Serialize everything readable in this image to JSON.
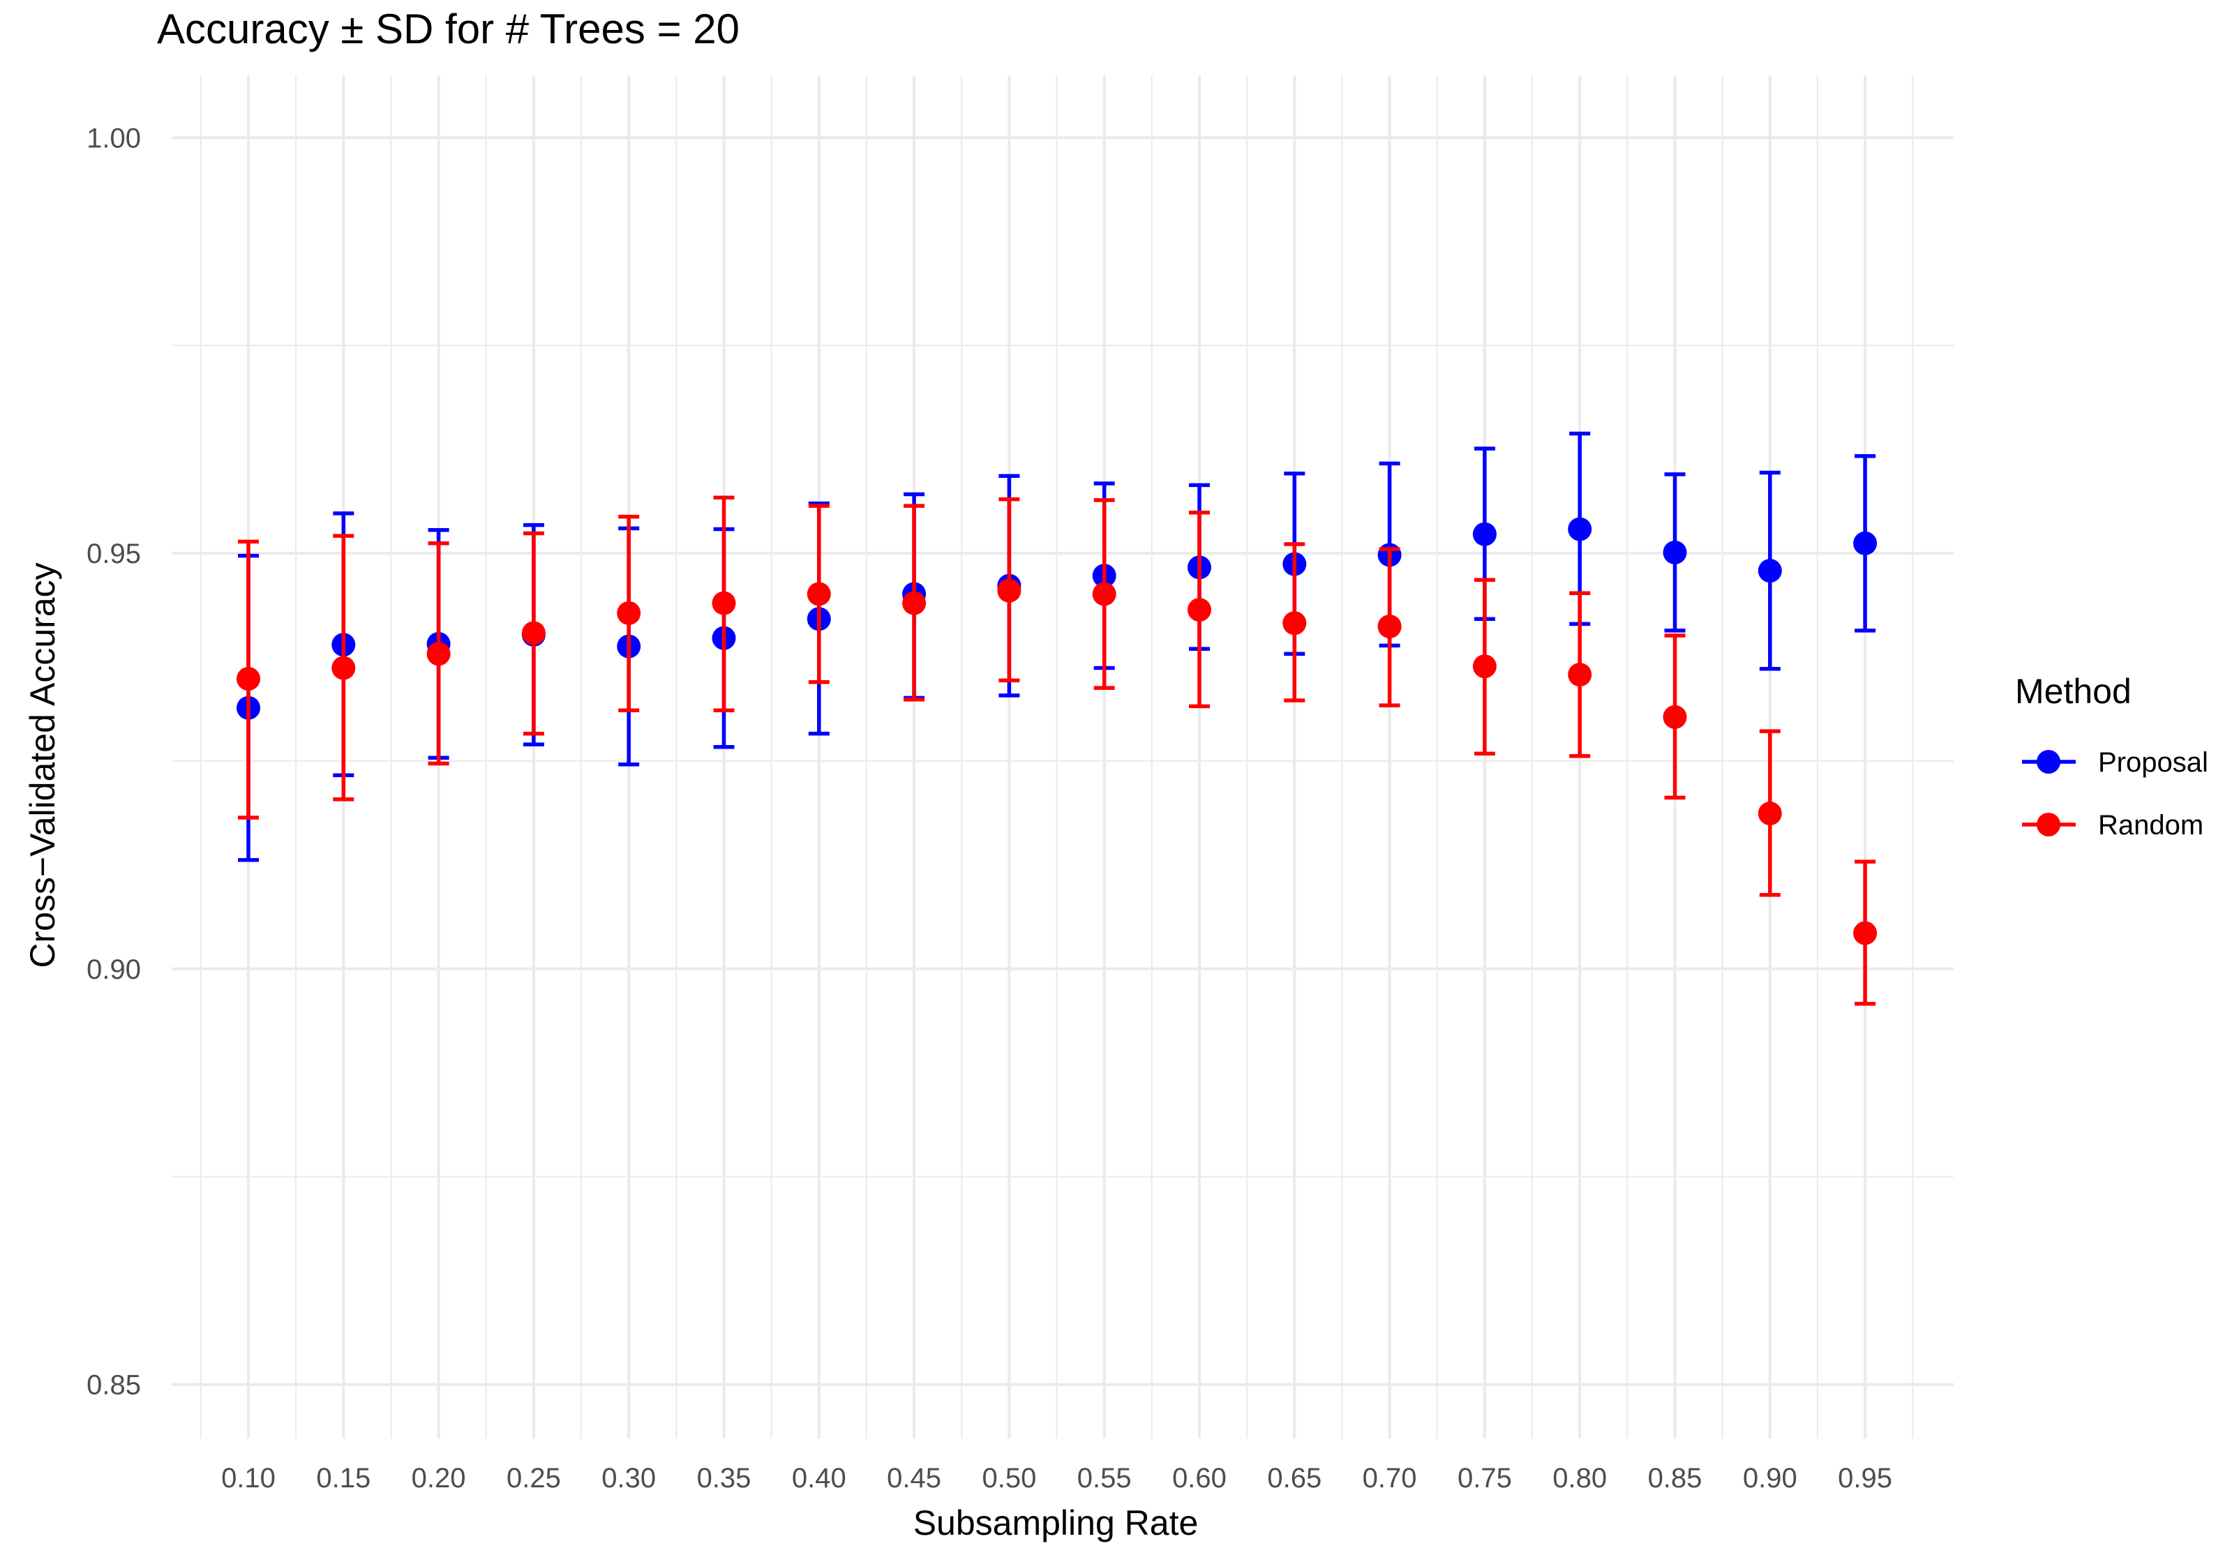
{
  "chart_data": {
    "type": "scatter",
    "title": "Accuracy ± SD for # Trees = 20",
    "xlabel": "Subsampling Rate",
    "ylabel": "Cross−Validated Accuracy",
    "categories": [
      "0.10",
      "0.15",
      "0.20",
      "0.25",
      "0.30",
      "0.35",
      "0.40",
      "0.45",
      "0.50",
      "0.55",
      "0.60",
      "0.65",
      "0.70",
      "0.75",
      "0.80",
      "0.85",
      "0.90",
      "0.95"
    ],
    "y_ticks": [
      "0.85",
      "0.90",
      "0.95",
      "1.00"
    ],
    "ylim": [
      0.8435,
      1.0075
    ],
    "grid": true,
    "legend": {
      "title": "Method",
      "position": "right"
    },
    "series": [
      {
        "name": "Proposal",
        "color": "#0000ff",
        "values": [
          0.9314,
          0.939,
          0.9391,
          0.9402,
          0.9388,
          0.9398,
          0.9421,
          0.9451,
          0.9461,
          0.9473,
          0.9483,
          0.9487,
          0.9498,
          0.9523,
          0.9529,
          0.9501,
          0.9479,
          0.9512
        ],
        "lower": [
          0.9131,
          0.9233,
          0.9254,
          0.927,
          0.9246,
          0.9267,
          0.9283,
          0.9326,
          0.9329,
          0.9362,
          0.9385,
          0.9379,
          0.9389,
          0.9421,
          0.9415,
          0.9407,
          0.9361,
          0.9407
        ],
        "upper": [
          0.9497,
          0.9548,
          0.9528,
          0.9534,
          0.953,
          0.9529,
          0.956,
          0.9571,
          0.9593,
          0.9584,
          0.9582,
          0.9596,
          0.9608,
          0.9626,
          0.9644,
          0.9595,
          0.9597,
          0.9617
        ]
      },
      {
        "name": "Random",
        "color": "#ff0000",
        "values": [
          0.9349,
          0.9362,
          0.9379,
          0.9404,
          0.9428,
          0.944,
          0.9451,
          0.944,
          0.9455,
          0.9451,
          0.9432,
          0.9416,
          0.9412,
          0.9364,
          0.9354,
          0.9303,
          0.9187,
          0.9043
        ],
        "lower": [
          0.9182,
          0.9204,
          0.9247,
          0.9283,
          0.9311,
          0.9311,
          0.9345,
          0.9324,
          0.9347,
          0.9338,
          0.9316,
          0.9323,
          0.9317,
          0.9259,
          0.9256,
          0.9206,
          0.9089,
          0.8958
        ],
        "upper": [
          0.9514,
          0.9521,
          0.9512,
          0.9524,
          0.9544,
          0.9567,
          0.9557,
          0.9557,
          0.9565,
          0.9564,
          0.9549,
          0.9511,
          0.9505,
          0.9468,
          0.9452,
          0.9401,
          0.9286,
          0.9129
        ]
      }
    ]
  }
}
